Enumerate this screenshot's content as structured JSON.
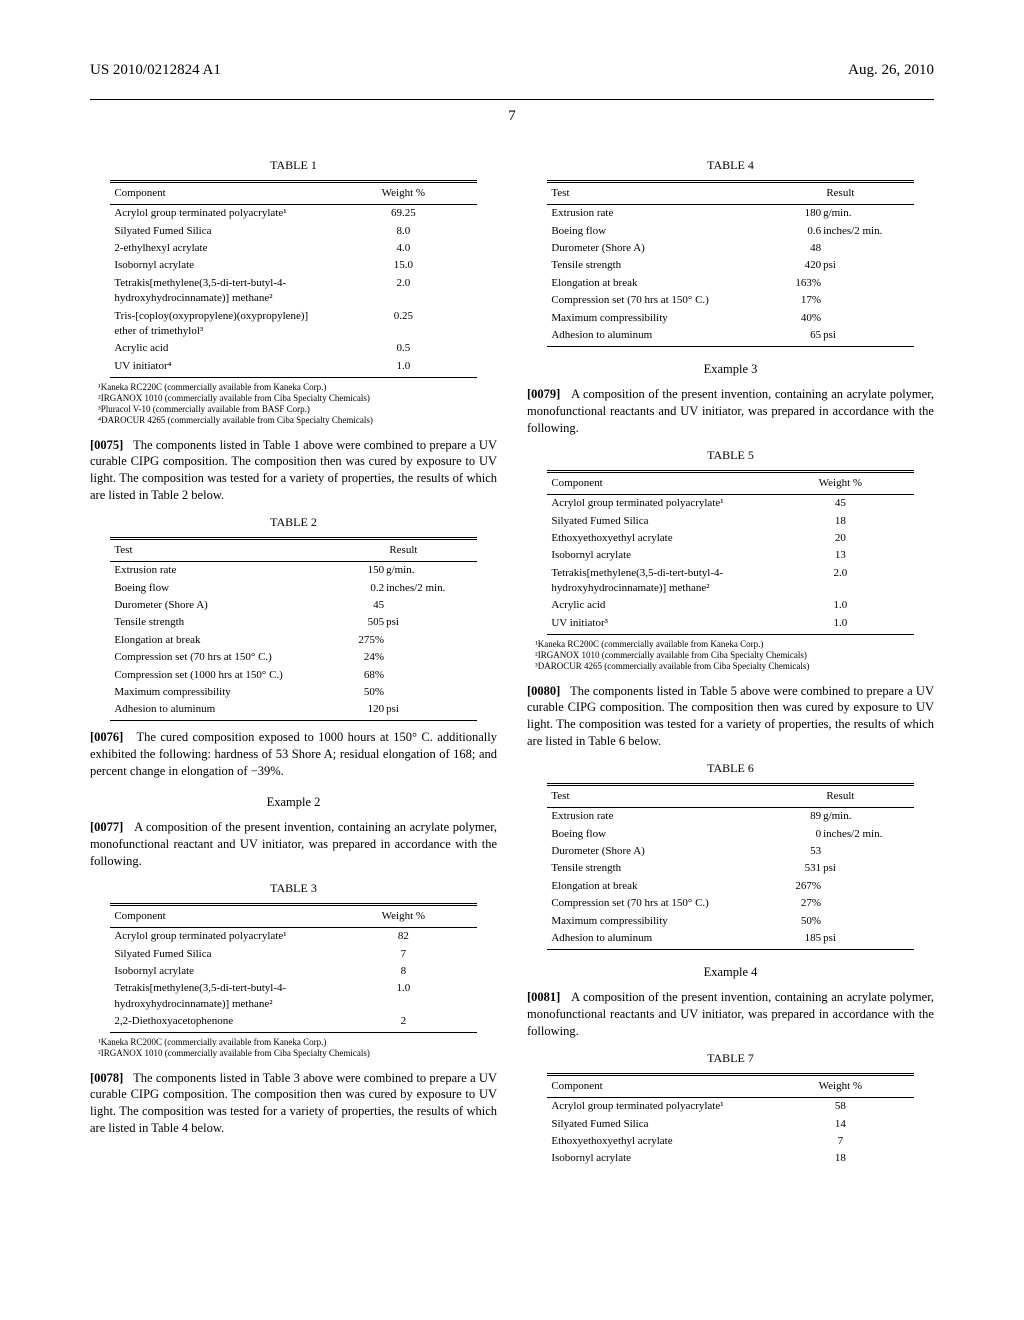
{
  "header": {
    "left": "US 2010/0212824 A1",
    "right": "Aug. 26, 2010"
  },
  "page_number": "7",
  "left_col": {
    "table1": {
      "title": "TABLE 1",
      "headers": [
        "Component",
        "Weight %"
      ],
      "rows": [
        [
          "Acrylol group terminated polyacrylate¹",
          "69.25"
        ],
        [
          "Silyated Fumed Silica",
          "8.0"
        ],
        [
          "2-ethylhexyl acrylate",
          "4.0"
        ],
        [
          "Isobornyl acrylate",
          "15.0"
        ],
        [
          "Tetrakis[methylene(3,5-di-tert-butyl-4-hydroxyhydrocinnamate)] methane²",
          "2.0"
        ],
        [
          "Tris-[coploy(oxypropylene)(oxypropylene)] ether of trimethylol³",
          "0.25"
        ],
        [
          "Acrylic acid",
          "0.5"
        ],
        [
          "UV initiator⁴",
          "1.0"
        ]
      ],
      "footnotes": [
        "¹Kaneka RC220C (commercially available from Kaneka Corp.)",
        "²IRGANOX 1010 (commercially available from Ciba Specialty Chemicals)",
        "³Pluracol V-10 (commercially available from BASF Corp.)",
        "⁴DAROCUR 4265 (commercially available from Ciba Specialty Chemicals)"
      ]
    },
    "para_0075_num": "[0075]",
    "para_0075": "The components listed in Table 1 above were combined to prepare a UV curable CIPG composition. The composition then was cured by exposure to UV light. The composition was tested for a variety of properties, the results of which are listed in Table 2 below.",
    "table2": {
      "title": "TABLE 2",
      "headers": [
        "Test",
        "Result"
      ],
      "rows": [
        [
          "Extrusion rate",
          "150",
          "g/min."
        ],
        [
          "Boeing flow",
          "0.2",
          "inches/2 min."
        ],
        [
          "Durometer (Shore A)",
          "45",
          ""
        ],
        [
          "Tensile strength",
          "505",
          "psi"
        ],
        [
          "Elongation at break",
          "275%",
          ""
        ],
        [
          "Compression set (70 hrs at 150° C.)",
          "24%",
          ""
        ],
        [
          "Compression set (1000 hrs at 150° C.)",
          "68%",
          ""
        ],
        [
          "Maximum compressibility",
          "50%",
          ""
        ],
        [
          "Adhesion to aluminum",
          "120",
          "psi"
        ]
      ]
    },
    "para_0076_num": "[0076]",
    "para_0076": "The cured composition exposed to 1000 hours at 150° C. additionally exhibited the following: hardness of 53 Shore A; residual elongation of 168; and percent change in elongation of −39%.",
    "example2_title": "Example 2",
    "para_0077_num": "[0077]",
    "para_0077": "A composition of the present invention, containing an acrylate polymer, monofunctional reactant and UV initiator, was prepared in accordance with the following.",
    "table3": {
      "title": "TABLE 3",
      "headers": [
        "Component",
        "Weight %"
      ],
      "rows": [
        [
          "Acrylol group terminated polyacrylate¹",
          "82"
        ],
        [
          "Silyated Fumed Silica",
          "7"
        ],
        [
          "Isobornyl acrylate",
          "8"
        ],
        [
          "Tetrakis[methylene(3,5-di-tert-butyl-4-hydroxyhydrocinnamate)] methane²",
          "1.0"
        ],
        [
          "2,2-Diethoxyacetophenone",
          "2"
        ]
      ],
      "footnotes": [
        "¹Kaneka RC200C (commercially available from Kaneka Corp.)",
        "²IRGANOX 1010 (commercially available from Ciba Specialty Chemicals)"
      ]
    },
    "para_0078_num": "[0078]",
    "para_0078": "The components listed in Table 3 above were combined to prepare a UV curable CIPG composition. The composition then was cured by exposure to UV light. The composition was tested for a variety of properties, the results of which are listed in Table 4 below."
  },
  "right_col": {
    "table4": {
      "title": "TABLE 4",
      "headers": [
        "Test",
        "Result"
      ],
      "rows": [
        [
          "Extrusion rate",
          "180",
          "g/min."
        ],
        [
          "Boeing flow",
          "0.6",
          "inches/2 min."
        ],
        [
          "Durometer (Shore A)",
          "48",
          ""
        ],
        [
          "Tensile strength",
          "420",
          "psi"
        ],
        [
          "Elongation at break",
          "163%",
          ""
        ],
        [
          "Compression set (70 hrs at 150° C.)",
          "17%",
          ""
        ],
        [
          "Maximum compressibility",
          "40%",
          ""
        ],
        [
          "Adhesion to aluminum",
          "65",
          "psi"
        ]
      ]
    },
    "example3_title": "Example 3",
    "para_0079_num": "[0079]",
    "para_0079": "A composition of the present invention, containing an acrylate polymer, monofunctional reactants and UV initiator, was prepared in accordance with the following.",
    "table5": {
      "title": "TABLE 5",
      "headers": [
        "Component",
        "Weight %"
      ],
      "rows": [
        [
          "Acrylol group terminated polyacrylate¹",
          "45"
        ],
        [
          "Silyated Fumed Silica",
          "18"
        ],
        [
          "Ethoxyethoxyethyl acrylate",
          "20"
        ],
        [
          "Isobornyl acrylate",
          "13"
        ],
        [
          "Tetrakis[methylene(3,5-di-tert-butyl-4-hydroxyhydrocinnamate)] methane²",
          "2.0"
        ],
        [
          "Acrylic acid",
          "1.0"
        ],
        [
          "UV initiator³",
          "1.0"
        ]
      ],
      "footnotes": [
        "¹Kaneka RC200C (commercially available from Kaneka Corp.)",
        "²IRGANOX 1010 (commercially available from Ciba Specialty Chemicals)",
        "³DAROCUR 4265 (commercially available from Ciba Specialty Chemicals)"
      ]
    },
    "para_0080_num": "[0080]",
    "para_0080": "The components listed in Table 5 above were combined to prepare a UV curable CIPG composition. The composition then was cured by exposure to UV light. The composition was tested for a variety of properties, the results of which are listed in Table 6 below.",
    "table6": {
      "title": "TABLE 6",
      "headers": [
        "Test",
        "Result"
      ],
      "rows": [
        [
          "Extrusion rate",
          "89",
          "g/min."
        ],
        [
          "Boeing flow",
          "0",
          "inches/2 min."
        ],
        [
          "Durometer (Shore A)",
          "53",
          ""
        ],
        [
          "Tensile strength",
          "531",
          "psi"
        ],
        [
          "Elongation at break",
          "267%",
          ""
        ],
        [
          "Compression set (70 hrs at 150° C.)",
          "27%",
          ""
        ],
        [
          "Maximum compressibility",
          "50%",
          ""
        ],
        [
          "Adhesion to aluminum",
          "185",
          "psi"
        ]
      ]
    },
    "example4_title": "Example 4",
    "para_0081_num": "[0081]",
    "para_0081": "A composition of the present invention, containing an acrylate polymer, monofunctional reactants and UV initiator, was prepared in accordance with the following.",
    "table7": {
      "title": "TABLE 7",
      "headers": [
        "Component",
        "Weight %"
      ],
      "rows": [
        [
          "Acrylol group terminated polyacrylate¹",
          "58"
        ],
        [
          "Silyated Fumed Silica",
          "14"
        ],
        [
          "Ethoxyethoxyethyl acrylate",
          "7"
        ],
        [
          "Isobornyl acrylate",
          "18"
        ]
      ]
    }
  }
}
